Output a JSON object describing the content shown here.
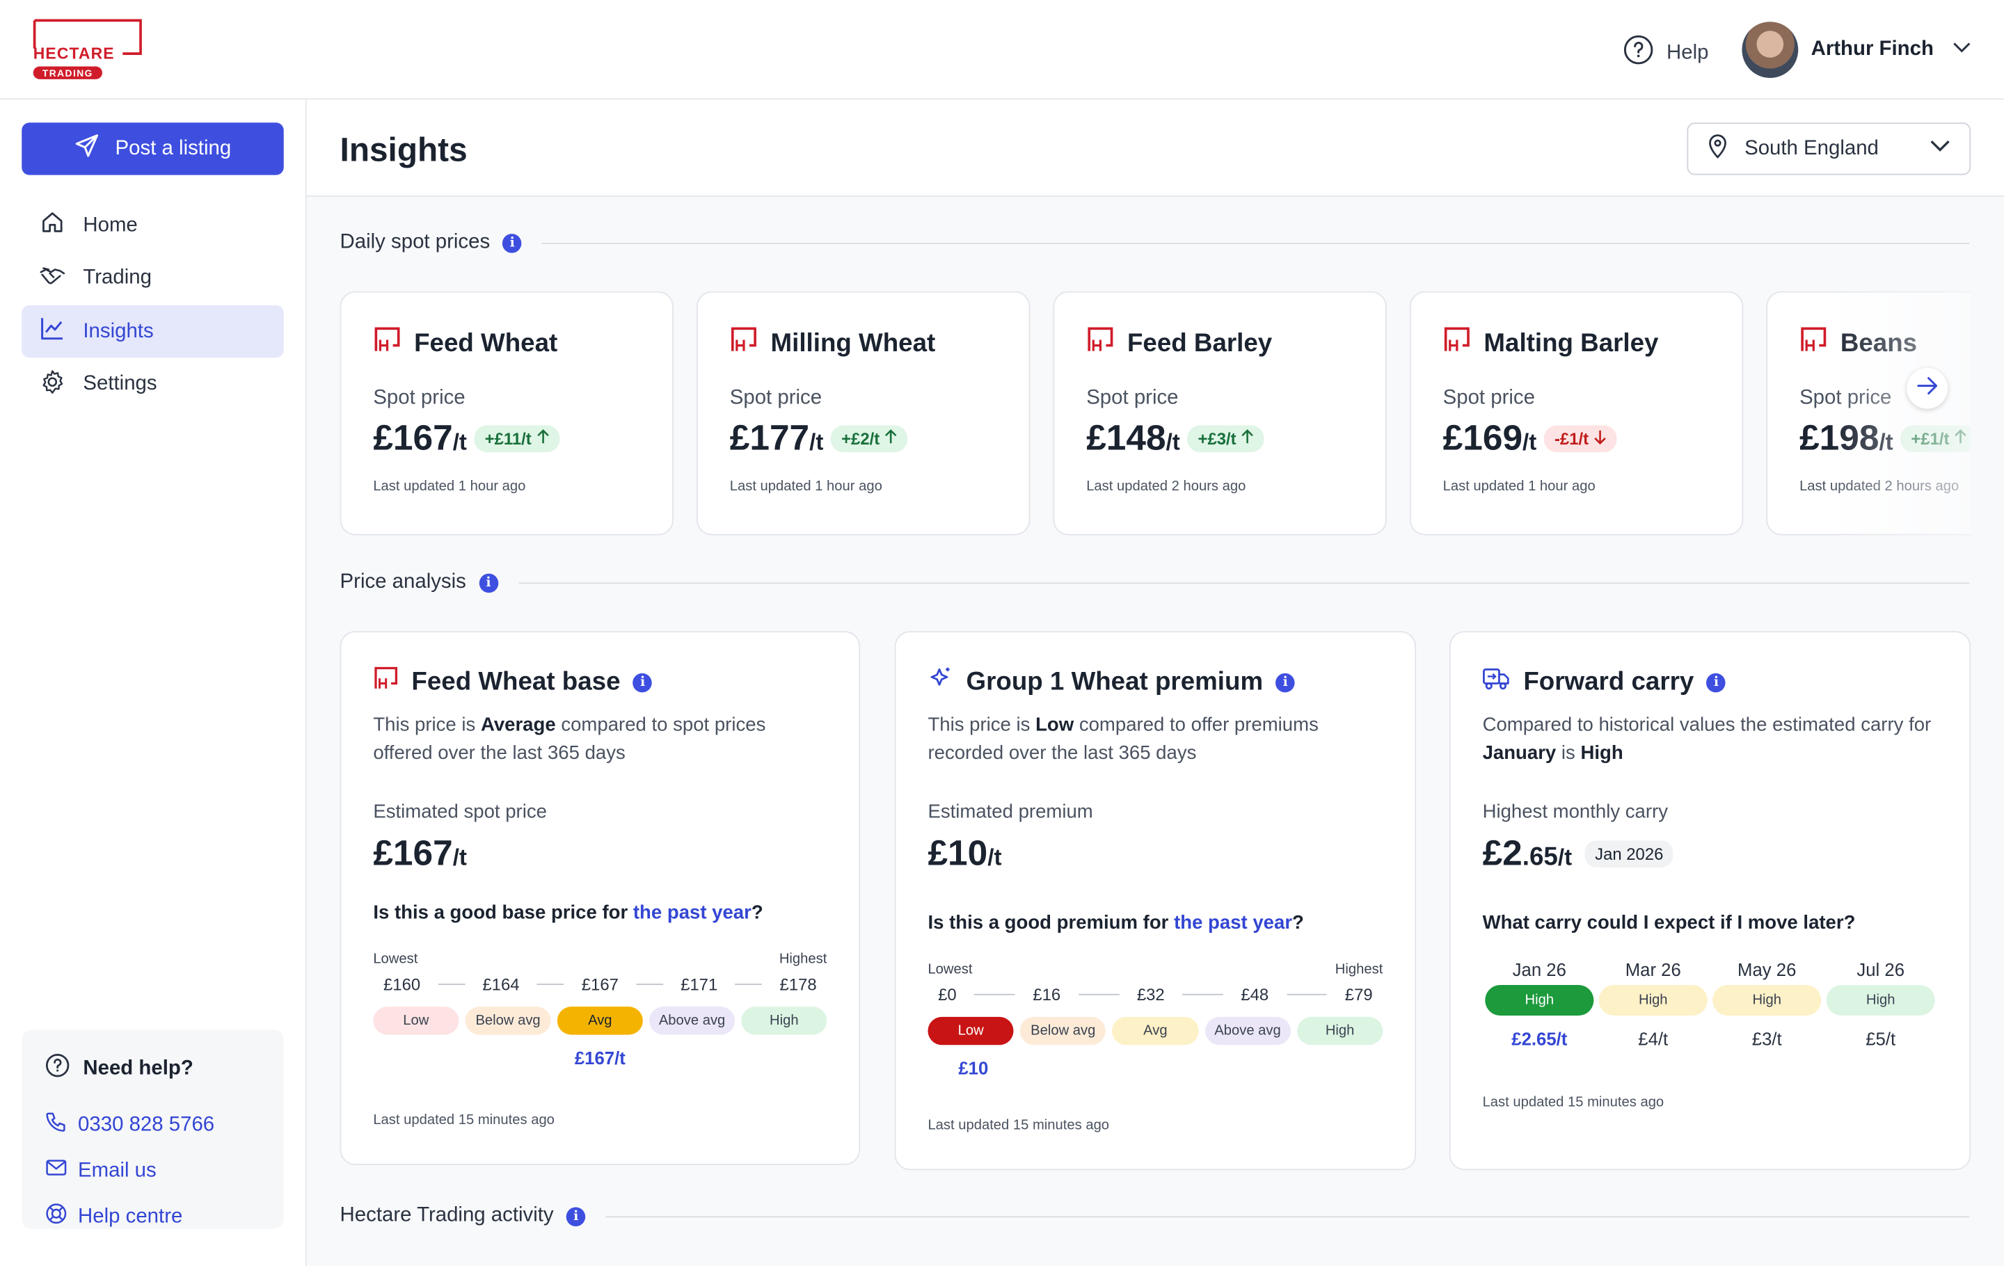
{
  "brand": {
    "name": "HECTARE",
    "sub": "TRADING",
    "color": "#d01c2a"
  },
  "header": {
    "help_label": "Help",
    "user_name": "Arthur Finch"
  },
  "sidebar": {
    "post_label": "Post a listing",
    "items": [
      {
        "label": "Home",
        "icon": "home-icon"
      },
      {
        "label": "Trading",
        "icon": "handshake-icon"
      },
      {
        "label": "Insights",
        "icon": "chart-line-icon",
        "active": true
      },
      {
        "label": "Settings",
        "icon": "gear-icon"
      }
    ],
    "help": {
      "title": "Need help?",
      "phone": "0330 828 5766",
      "email": "Email us",
      "centre": "Help centre"
    }
  },
  "page": {
    "title": "Insights",
    "region": "South England"
  },
  "sections": {
    "spot": "Daily spot prices",
    "analysis": "Price analysis",
    "activity": "Hectare Trading activity"
  },
  "spot_cards": [
    {
      "name": "Feed Wheat",
      "label": "Spot price",
      "price": "£167",
      "unit": "/t",
      "change": "+£11/t",
      "dir": "up",
      "updated": "Last updated 1 hour ago"
    },
    {
      "name": "Milling Wheat",
      "label": "Spot price",
      "price": "£177",
      "unit": "/t",
      "change": "+£2/t",
      "dir": "up",
      "updated": "Last updated 1 hour ago"
    },
    {
      "name": "Feed Barley",
      "label": "Spot price",
      "price": "£148",
      "unit": "/t",
      "change": "+£3/t",
      "dir": "up",
      "updated": "Last updated 2 hours ago"
    },
    {
      "name": "Malting Barley",
      "label": "Spot price",
      "price": "£169",
      "unit": "/t",
      "change": "-£1/t",
      "dir": "down",
      "updated": "Last updated 1 hour ago"
    },
    {
      "name": "Beans",
      "label": "Spot price",
      "price": "£198",
      "unit": "/t",
      "change": "+£1/t",
      "dir": "up",
      "updated": "Last updated 2 hours ago"
    }
  ],
  "base": {
    "title": "Feed Wheat base",
    "desc_a": "This price is ",
    "desc_b": "Average",
    "desc_c": " compared to spot prices offered over the last 365 days",
    "label": "Estimated spot price",
    "price": "£167",
    "unit": "/t",
    "q_a": "Is this a good base price for ",
    "q_link": "the past year",
    "q_b": "?",
    "lowest": "Lowest",
    "highest": "Highest",
    "ticks": [
      "£160",
      "£164",
      "£167",
      "£171",
      "£178"
    ],
    "bands": [
      "Low",
      "Below avg",
      "Avg",
      "Above avg",
      "High"
    ],
    "selected_band": 2,
    "result": "£167/t",
    "updated": "Last updated 15 minutes ago"
  },
  "premium": {
    "title": "Group 1 Wheat premium",
    "desc_a": "This price is ",
    "desc_b": "Low",
    "desc_c": " compared to offer premiums recorded over the last 365 days",
    "label": "Estimated premium",
    "price": "£10",
    "unit": "/t",
    "q_a": "Is this a good premium for ",
    "q_link": "the past year",
    "q_b": "?",
    "lowest": "Lowest",
    "highest": "Highest",
    "ticks": [
      "£0",
      "£16",
      "£32",
      "£48",
      "£79"
    ],
    "bands": [
      "Low",
      "Below avg",
      "Avg",
      "Above avg",
      "High"
    ],
    "selected_band": 0,
    "result": "£10",
    "updated": "Last updated 15 minutes ago"
  },
  "carry": {
    "title": "Forward carry",
    "desc_a": "Compared to historical values the estimated carry for ",
    "desc_b": "January",
    "desc_c": " is ",
    "desc_d": "High",
    "label": "Highest monthly carry",
    "price": "£2",
    "price_dec": ".65",
    "unit": "/t",
    "date": "Jan 2026",
    "q": "What carry could I expect if I move later?",
    "months": [
      {
        "m": "Jan 26",
        "band": "High",
        "v": "£2.65/t",
        "sel": true
      },
      {
        "m": "Mar 26",
        "band": "High",
        "v": "£4/t"
      },
      {
        "m": "May 26",
        "band": "High",
        "v": "£3/t"
      },
      {
        "m": "Jul 26",
        "band": "High",
        "v": "£5/t"
      }
    ],
    "updated": "Last updated 15 minutes ago"
  },
  "colors": {
    "accent": "#3e4fe0",
    "low_sel": "#c81414",
    "avg_sel": "#f5b301",
    "high_sel": "#1c9a3c"
  }
}
